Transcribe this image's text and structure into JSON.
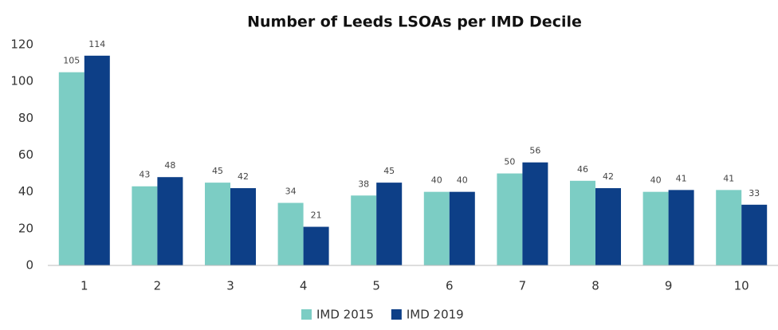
{
  "chart_data": {
    "type": "bar",
    "title": "Number of Leeds LSOAs per IMD Decile",
    "categories": [
      "1",
      "2",
      "3",
      "4",
      "5",
      "6",
      "7",
      "8",
      "9",
      "10"
    ],
    "series": [
      {
        "name": "IMD 2015",
        "color": "#7ccdc4",
        "values": [
          105,
          43,
          45,
          34,
          38,
          40,
          50,
          46,
          40,
          41
        ]
      },
      {
        "name": "IMD 2019",
        "color": "#0d3f87",
        "values": [
          114,
          48,
          42,
          21,
          45,
          40,
          56,
          42,
          41,
          33
        ]
      }
    ],
    "ylim": [
      0,
      120
    ],
    "yticks": [
      0,
      20,
      40,
      60,
      80,
      100,
      120
    ],
    "grid": false,
    "legend": "bottom"
  }
}
